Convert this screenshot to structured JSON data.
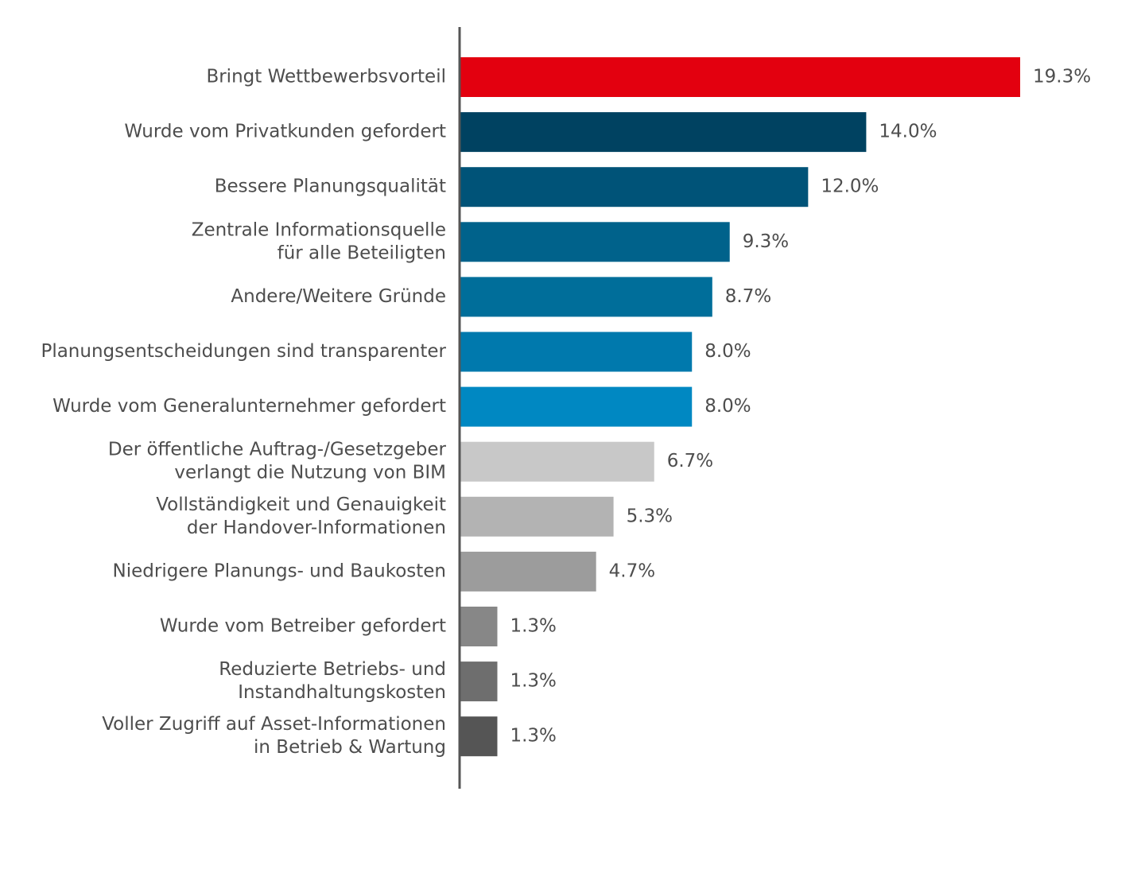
{
  "chart_data": {
    "type": "bar",
    "orientation": "horizontal",
    "categories": [
      [
        "Bringt Wettbewerbsvorteil"
      ],
      [
        "Wurde vom Privatkunden gefordert"
      ],
      [
        "Bessere Planungsqualität"
      ],
      [
        "Zentrale Informationsquelle",
        "für alle Beteiligten"
      ],
      [
        "Andere/Weitere Gründe"
      ],
      [
        "Planungsentscheidungen sind transparenter"
      ],
      [
        "Wurde vom Generalunternehmer gefordert"
      ],
      [
        "Der öffentliche Auftrag-/Gesetzgeber",
        "verlangt die Nutzung von BIM"
      ],
      [
        "Vollständigkeit und Genauigkeit",
        "der Handover-Informationen"
      ],
      [
        "Niedrigere Planungs- und Baukosten"
      ],
      [
        "Wurde vom Betreiber gefordert"
      ],
      [
        "Reduzierte Betriebs- und",
        "Instandhaltungskosten"
      ],
      [
        "Voller Zugriff auf Asset-Informationen",
        "in Betrieb & Wartung"
      ]
    ],
    "values": [
      19.3,
      14.0,
      12.0,
      9.3,
      8.7,
      8.0,
      8.0,
      6.7,
      5.3,
      4.7,
      1.3,
      1.3,
      1.3
    ],
    "value_labels": [
      "19.3%",
      "14.0%",
      "12.0%",
      "9.3%",
      "8.7%",
      "8.0%",
      "8.0%",
      "6.7%",
      "5.3%",
      "4.7%",
      "1.3%",
      "1.3%",
      "1.3%"
    ],
    "colors": [
      "#e3000f",
      "#004261",
      "#005378",
      "#00628b",
      "#006e9a",
      "#0079ad",
      "#0088c2",
      "#c8c8c8",
      "#b3b3b3",
      "#9c9c9c",
      "#878787",
      "#6e6e6e",
      "#555555"
    ],
    "xlim": [
      0,
      19.3
    ],
    "title": "",
    "xlabel": "",
    "ylabel": "",
    "grid": false,
    "legend": "none"
  },
  "colors": {
    "axis": "#555555",
    "text": "#4d4d4d"
  }
}
